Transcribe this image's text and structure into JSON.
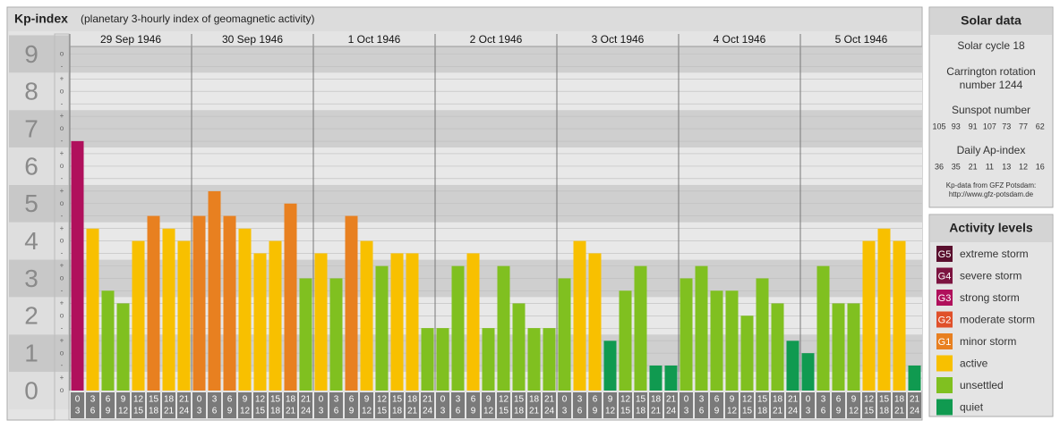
{
  "header": {
    "title": "Kp-index",
    "subtitle": "(planetary 3-hourly index of geomagnetic activity)"
  },
  "chart_data": {
    "type": "bar",
    "days": [
      "29 Sep 1946",
      "30 Sep 1946",
      "1 Oct 1946",
      "2 Oct 1946",
      "3 Oct 1946",
      "4 Oct 1946",
      "5 Oct 1946"
    ],
    "time_slots": [
      [
        "0",
        "3"
      ],
      [
        "3",
        "6"
      ],
      [
        "6",
        "9"
      ],
      [
        "9",
        "12"
      ],
      [
        "12",
        "15"
      ],
      [
        "15",
        "18"
      ],
      [
        "18",
        "21"
      ],
      [
        "21",
        "24"
      ]
    ],
    "values": [
      6.67,
      4.33,
      2.67,
      2.33,
      4,
      4.67,
      4.33,
      4,
      4.67,
      5.33,
      4.67,
      4.33,
      3.67,
      4,
      5,
      3,
      3.67,
      3,
      4.67,
      4,
      3.33,
      3.67,
      3.67,
      1.67,
      1.67,
      3.33,
      3.67,
      1.67,
      3.33,
      2.33,
      1.67,
      1.67,
      3,
      4,
      3.67,
      1.33,
      2.67,
      3.33,
      0.67,
      0.67,
      3,
      3.33,
      2.67,
      2.67,
      2,
      3,
      2.33,
      1.33,
      1,
      3.33,
      2.33,
      2.33,
      4,
      4.33,
      4,
      0.67
    ],
    "colors": [
      "#b0105c",
      "#f8c000",
      "#80c020",
      "#80c020",
      "#f8c000",
      "#e88020",
      "#f8c000",
      "#f8c000",
      "#e88020",
      "#e88020",
      "#e88020",
      "#f8c000",
      "#f8c000",
      "#f8c000",
      "#e88020",
      "#80c020",
      "#f8c000",
      "#80c020",
      "#e88020",
      "#f8c000",
      "#80c020",
      "#f8c000",
      "#f8c000",
      "#80c020",
      "#80c020",
      "#80c020",
      "#f8c000",
      "#80c020",
      "#80c020",
      "#80c020",
      "#80c020",
      "#80c020",
      "#80c020",
      "#f8c000",
      "#f8c000",
      "#109a50",
      "#80c020",
      "#80c020",
      "#109a50",
      "#109a50",
      "#80c020",
      "#80c020",
      "#80c020",
      "#80c020",
      "#80c020",
      "#80c020",
      "#80c020",
      "#109a50",
      "#109a50",
      "#80c020",
      "#80c020",
      "#80c020",
      "#f8c000",
      "#f8c000",
      "#f8c000",
      "#109a50"
    ],
    "ylim": [
      0,
      9.2
    ],
    "yticks": [
      0,
      1,
      2,
      3,
      4,
      5,
      6,
      7,
      8,
      9
    ],
    "minor_tick_labels": {
      "minus": "-",
      "zero": "o",
      "plus": "+"
    }
  },
  "solar_data": {
    "title": "Solar data",
    "cycle": "Solar cycle 18",
    "carrington": [
      "Carrington rotation",
      "number 1244"
    ],
    "sunspot_title": "Sunspot number",
    "sunspot_numbers": [
      105,
      93,
      91,
      107,
      73,
      77,
      62
    ],
    "ap_title": "Daily Ap-index",
    "ap_values": [
      36,
      35,
      21,
      11,
      13,
      12,
      16
    ],
    "source": [
      "Kp-data from GFZ Potsdam:",
      "http://www.gfz-potsdam.de"
    ]
  },
  "activity_levels": {
    "title": "Activity levels",
    "items": [
      {
        "badge": "G5",
        "label": "extreme storm",
        "color": "#5a0f2e"
      },
      {
        "badge": "G4",
        "label": "severe storm",
        "color": "#7c1440"
      },
      {
        "badge": "G3",
        "label": "strong storm",
        "color": "#b0105c"
      },
      {
        "badge": "G2",
        "label": "moderate storm",
        "color": "#e0502a"
      },
      {
        "badge": "G1",
        "label": "minor storm",
        "color": "#e88020"
      },
      {
        "label": "active",
        "color": "#f8c000"
      },
      {
        "label": "unsettled",
        "color": "#80c020"
      },
      {
        "label": "quiet",
        "color": "#109a50"
      }
    ]
  }
}
